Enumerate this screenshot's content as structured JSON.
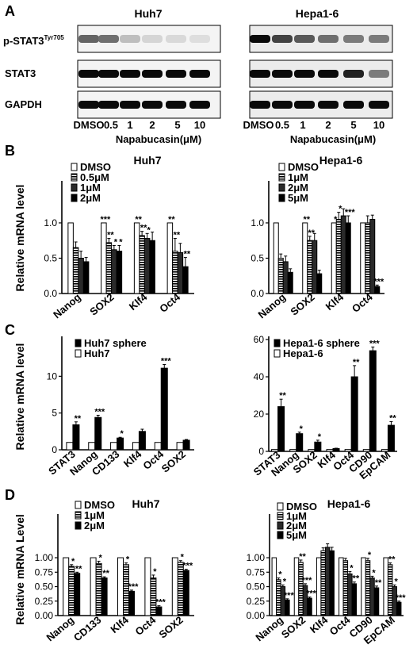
{
  "panel_labels": [
    "A",
    "B",
    "C",
    "D"
  ],
  "panelA": {
    "cell_lines": [
      "Huh7",
      "Hepa1-6"
    ],
    "rows": [
      "p-STAT3",
      "STAT3",
      "GAPDH"
    ],
    "row_superscript": "Tyr705",
    "lanes": [
      "DMSO",
      "0.5",
      "1",
      "2",
      "5",
      "10"
    ],
    "xlabel": "Napabucasin(μM)",
    "band_intensity": {
      "Huh7": {
        "p-STAT3": [
          0.6,
          0.55,
          0.2,
          0.1,
          0.08,
          0.06
        ],
        "STAT3": [
          1,
          1,
          1,
          1,
          1,
          1
        ],
        "GAPDH": [
          1,
          1,
          1,
          1,
          1,
          1
        ]
      },
      "Hepa1-6": {
        "p-STAT3": [
          1,
          0.75,
          0.65,
          0.55,
          0.5,
          0.5
        ],
        "STAT3": [
          1,
          1,
          1,
          1,
          0.9,
          0.5
        ],
        "GAPDH": [
          1,
          1,
          1,
          1,
          1,
          1
        ]
      }
    }
  },
  "chart_data": [
    {
      "id": "B-huh7",
      "type": "bar",
      "title": "Huh7",
      "ylabel": "Relative mRNA level",
      "ylim": [
        0,
        1.55
      ],
      "yticks": [
        "0.0",
        "0.5",
        "1.0"
      ],
      "categories": [
        "Nanog",
        "SOX2",
        "Klf4",
        "Oct4"
      ],
      "series": [
        {
          "name": "DMSO",
          "values": [
            1.0,
            1.0,
            1.0,
            1.0
          ],
          "err": [
            0,
            0,
            0,
            0
          ]
        },
        {
          "name": "0.5μM",
          "values": [
            0.65,
            0.72,
            0.82,
            0.6
          ],
          "err": [
            0.08,
            0.06,
            0.06,
            0.18
          ]
        },
        {
          "name": "1μM",
          "values": [
            0.5,
            0.62,
            0.78,
            0.58
          ],
          "err": [
            0.1,
            0.06,
            0.07,
            0.13
          ]
        },
        {
          "name": "2μM",
          "values": [
            0.45,
            0.6,
            0.75,
            0.38
          ],
          "err": [
            0.06,
            0.08,
            0.12,
            0.13
          ]
        }
      ],
      "sig": [
        [
          "",
          "***",
          "**",
          "**"
        ],
        [
          "",
          "**",
          "**",
          "**"
        ],
        [
          "",
          "*",
          "*",
          ""
        ],
        [
          "",
          "*",
          "",
          "**"
        ]
      ],
      "legend_fill": [
        "white",
        "hatch",
        "dark",
        "black"
      ]
    },
    {
      "id": "B-hepa",
      "type": "bar",
      "title": "Hepa1-6",
      "ylabel": "",
      "ylim": [
        0,
        1.55
      ],
      "yticks": [
        "0.0",
        "0.5",
        "1.0"
      ],
      "categories": [
        "Nanog",
        "SOX2",
        "Klf4",
        "Oct4"
      ],
      "series": [
        {
          "name": "DMSO",
          "values": [
            1.0,
            1.0,
            1.0,
            1.0
          ],
          "err": [
            0,
            0,
            0,
            0
          ]
        },
        {
          "name": "1μM",
          "values": [
            0.5,
            0.75,
            1.05,
            1.0
          ],
          "err": [
            0.06,
            0.06,
            0.1,
            0.1
          ]
        },
        {
          "name": "2μM",
          "values": [
            0.45,
            0.75,
            1.1,
            1.05
          ],
          "err": [
            0.08,
            0.1,
            0.1,
            0.06
          ]
        },
        {
          "name": "5μM",
          "values": [
            0.3,
            0.28,
            1.0,
            0.1
          ],
          "err": [
            0.05,
            0.05,
            0.1,
            0.02
          ]
        }
      ],
      "sig": [
        [
          "",
          "**",
          "*",
          ""
        ],
        [
          "",
          "**",
          "*",
          ""
        ],
        [
          "",
          "",
          "",
          ""
        ],
        [
          "",
          "",
          "***",
          "***"
        ]
      ],
      "legend_fill": [
        "white",
        "hatch",
        "dark",
        "black"
      ]
    },
    {
      "id": "C-huh7",
      "type": "bar",
      "title": "",
      "ylabel": "Relative mRNA level",
      "ylim": [
        0,
        15
      ],
      "yticks": [
        "0",
        "5",
        "10"
      ],
      "categories": [
        "STAT3",
        "Nanog",
        "CD133",
        "Klf4",
        "Oct4",
        "SOX2"
      ],
      "series": [
        {
          "name": "Huh7",
          "values": [
            1,
            1,
            1,
            1,
            1,
            1
          ],
          "err": [
            0,
            0,
            0,
            0,
            0,
            0
          ]
        },
        {
          "name": "Huh7 sphere",
          "values": [
            3.4,
            4.4,
            1.6,
            2.5,
            11.1,
            1.3
          ],
          "err": [
            0.4,
            0.3,
            0.1,
            0.3,
            0.5,
            0.1
          ]
        }
      ],
      "sig": [
        [
          "",
          "",
          "",
          "",
          "",
          ""
        ],
        [
          "**",
          "***",
          "*",
          "",
          "***",
          ""
        ]
      ],
      "legend_order": [
        1,
        0
      ],
      "legend_fill": [
        "white",
        "black"
      ]
    },
    {
      "id": "C-hepa",
      "type": "bar",
      "title": "",
      "ylabel": "",
      "ylim": [
        0,
        60
      ],
      "yticks": [
        "0",
        "20",
        "40",
        "60"
      ],
      "categories": [
        "STAT3",
        "Nanog",
        "SOX2",
        "Klf4",
        "Oct4",
        "CD90",
        "EpCAM"
      ],
      "series": [
        {
          "name": "Hepa1-6",
          "values": [
            1,
            1,
            1,
            1,
            1,
            1,
            1
          ],
          "err": [
            0,
            0,
            0,
            0,
            0,
            0,
            0
          ]
        },
        {
          "name": "Hepa1-6 sphere",
          "values": [
            24,
            9.5,
            5,
            1.5,
            40,
            54,
            14
          ],
          "err": [
            4,
            0.8,
            1,
            0.2,
            6,
            2,
            2
          ]
        }
      ],
      "sig": [
        [
          "",
          "",
          "",
          "",
          "",
          "",
          ""
        ],
        [
          "**",
          "*",
          "*",
          "",
          "**",
          "***",
          "**"
        ]
      ],
      "legend_order": [
        1,
        0
      ],
      "legend_fill": [
        "white",
        "black"
      ]
    },
    {
      "id": "D-huh7",
      "type": "bar",
      "title": "Huh7",
      "ylabel": "Relative mRNA Level",
      "ylim": [
        0,
        1.7
      ],
      "yticks": [
        "0.00",
        "0.25",
        "0.50",
        "0.75",
        "1.00"
      ],
      "categories": [
        "Nanog",
        "CD133",
        "Klf4",
        "Oct4",
        "SOX2"
      ],
      "series": [
        {
          "name": "DMSO",
          "values": [
            1.0,
            1.0,
            1.0,
            1.0,
            1.0
          ],
          "err": [
            0,
            0,
            0,
            0,
            0
          ]
        },
        {
          "name": "1μM",
          "values": [
            0.85,
            0.9,
            0.88,
            0.65,
            0.92
          ],
          "err": [
            0.03,
            0.04,
            0.03,
            0.05,
            0.03
          ]
        },
        {
          "name": "2μM",
          "values": [
            0.73,
            0.65,
            0.42,
            0.15,
            0.78
          ],
          "err": [
            0.02,
            0.02,
            0.02,
            0.02,
            0.02
          ]
        }
      ],
      "sig": [
        [
          "",
          "",
          "",
          "",
          ""
        ],
        [
          "*",
          "*",
          "*",
          "*",
          "*"
        ],
        [
          "**",
          "**",
          "***",
          "***",
          "***"
        ]
      ],
      "legend_fill": [
        "white",
        "hatch",
        "black"
      ]
    },
    {
      "id": "D-hepa",
      "type": "bar",
      "title": "Hepa1-6",
      "ylabel": "",
      "ylim": [
        0,
        1.7
      ],
      "yticks": [
        "0.00",
        "0.25",
        "0.50",
        "0.75",
        "1.00"
      ],
      "categories": [
        "Nanog",
        "SOX2",
        "Klf4",
        "Oct4",
        "CD90",
        "EpCAM"
      ],
      "series": [
        {
          "name": "DMSO",
          "values": [
            1.0,
            1.0,
            1.0,
            1.0,
            1.0,
            1.0
          ],
          "err": [
            0,
            0,
            0,
            0,
            0,
            0
          ]
        },
        {
          "name": "1μM",
          "values": [
            0.62,
            0.92,
            1.12,
            0.95,
            0.95,
            0.88
          ],
          "err": [
            0.03,
            0.04,
            0.05,
            0.04,
            0.04,
            0.03
          ]
        },
        {
          "name": "2μM",
          "values": [
            0.5,
            0.52,
            1.18,
            0.72,
            0.65,
            0.5
          ],
          "err": [
            0.03,
            0.03,
            0.06,
            0.04,
            0.03,
            0.03
          ]
        },
        {
          "name": "5μM",
          "values": [
            0.27,
            0.3,
            1.12,
            0.55,
            0.48,
            0.23
          ],
          "err": [
            0.02,
            0.02,
            0.06,
            0.03,
            0.03,
            0.02
          ]
        }
      ],
      "sig": [
        [
          "",
          "",
          "",
          "",
          "",
          ""
        ],
        [
          "*",
          "**",
          "",
          "",
          "*",
          "**"
        ],
        [
          "*",
          "***",
          "",
          "*",
          "*",
          "*"
        ],
        [
          "***",
          "***",
          "",
          "**",
          "**",
          "***"
        ]
      ],
      "legend_fill": [
        "white",
        "hatch",
        "dark",
        "black"
      ]
    }
  ]
}
